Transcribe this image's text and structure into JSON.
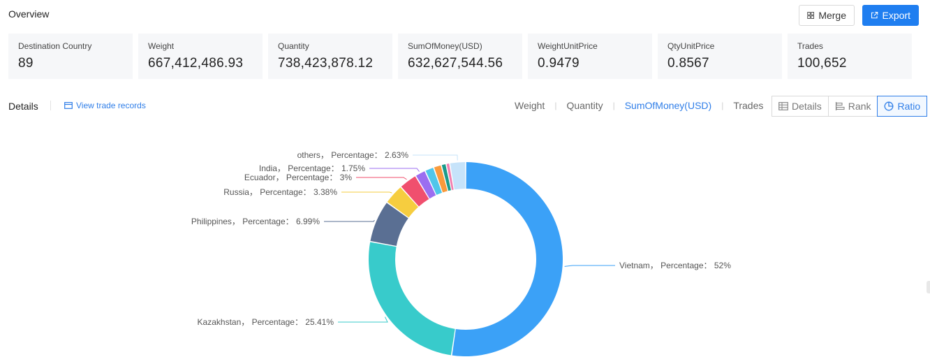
{
  "header": {
    "title": "Overview",
    "merge_label": "Merge",
    "export_label": "Export"
  },
  "cards": [
    {
      "label": "Destination Country",
      "value": "89"
    },
    {
      "label": "Weight",
      "value": "667,412,486.93"
    },
    {
      "label": "Quantity",
      "value": "738,423,878.12"
    },
    {
      "label": "SumOfMoney(USD)",
      "value": "632,627,544.56"
    },
    {
      "label": "WeightUnitPrice",
      "value": "0.9479"
    },
    {
      "label": "QtyUnitPrice",
      "value": "0.8567"
    },
    {
      "label": "Trades",
      "value": "100,652"
    }
  ],
  "details": {
    "label": "Details",
    "view_link": "View trade records",
    "metric_tabs": [
      "Weight",
      "Quantity",
      "SumOfMoney(USD)",
      "Trades"
    ],
    "active_metric": "SumOfMoney(USD)",
    "view_tabs": [
      "Details",
      "Rank",
      "Ratio"
    ],
    "active_view": "Ratio"
  },
  "colors": {
    "accent": "#1f7ef0"
  },
  "icons": {
    "merge": "merge-icon",
    "export": "export-icon",
    "view_link": "card-icon",
    "details": "table-icon",
    "rank": "bar-rank-icon",
    "ratio": "pie-icon"
  },
  "chart_data": {
    "type": "pie",
    "style": "donut",
    "order": "clockwise from top",
    "slices": [
      {
        "name": "Vietnam",
        "label": "Vietnam， Percentage： 52%",
        "value": 52,
        "color": "#3ba1f7"
      },
      {
        "name": "Kazakhstan",
        "label": "Kazakhstan， Percentage： 25.41%",
        "value": 25.41,
        "color": "#38cbcb"
      },
      {
        "name": "Philippines",
        "label": "Philippines， Percentage： 6.99%",
        "value": 6.99,
        "color": "#5a6f93"
      },
      {
        "name": "Russia",
        "label": "Russia， Percentage： 3.38%",
        "value": 3.38,
        "color": "#f6cd3f"
      },
      {
        "name": "Ecuador",
        "label": "Ecuador， Percentage： 3%",
        "value": 3,
        "color": "#f04f6e"
      },
      {
        "name": "India",
        "label": "India， Percentage： 1.75%",
        "value": 1.75,
        "color": "#9b6ef0"
      },
      {
        "name": "",
        "label": "",
        "value": 1.5,
        "color": "#4fc6ea"
      },
      {
        "name": "",
        "label": "",
        "value": 1.3,
        "color": "#f99a3c"
      },
      {
        "name": "",
        "label": "",
        "value": 0.8,
        "color": "#1a9b8b"
      },
      {
        "name": "",
        "label": "",
        "value": 0.6,
        "color": "#f27fb0"
      },
      {
        "name": "others",
        "label": "others， Percentage： 2.63%",
        "value": 2.63,
        "color": "#c6e3fa"
      }
    ]
  }
}
